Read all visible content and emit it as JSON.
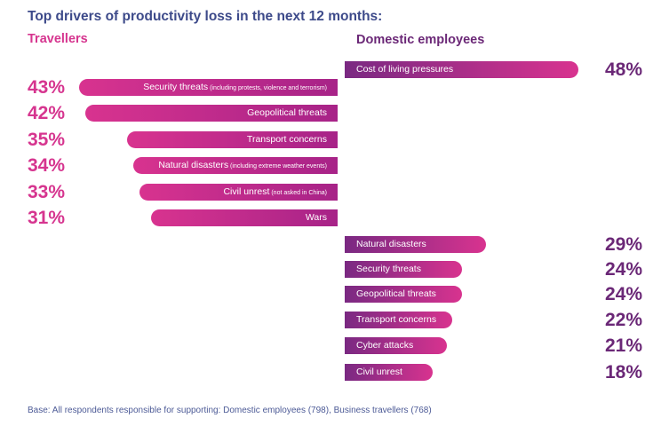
{
  "chart_data": {
    "type": "bar",
    "title": "Top drivers of productivity loss in the next 12 months:",
    "unit": "%",
    "xlim": [
      0,
      50
    ],
    "series": [
      {
        "name": "Travellers",
        "color": "#d6358f",
        "orientation": "left",
        "categories": [
          {
            "label": "Security threats",
            "note": "(including protests, violence and terrorism)"
          },
          {
            "label": "Geopolitical threats",
            "note": ""
          },
          {
            "label": "Transport concerns",
            "note": ""
          },
          {
            "label": "Natural disasters",
            "note": "(including extreme weather events)"
          },
          {
            "label": "Civil unrest",
            "note": "(not asked in China)"
          },
          {
            "label": "Wars",
            "note": ""
          }
        ],
        "values": [
          43,
          42,
          35,
          34,
          33,
          31
        ],
        "value_labels": [
          "43%",
          "42%",
          "35%",
          "34%",
          "33%",
          "31%"
        ]
      },
      {
        "name": "Domestic employees",
        "color": "#6b2877",
        "orientation": "right",
        "categories": [
          {
            "label": "Cost of living pressures",
            "note": ""
          },
          {
            "label": "Natural disasters",
            "note": ""
          },
          {
            "label": "Security threats",
            "note": ""
          },
          {
            "label": "Geopolitical threats",
            "note": ""
          },
          {
            "label": "Transport concerns",
            "note": ""
          },
          {
            "label": "Cyber attacks",
            "note": ""
          },
          {
            "label": "Civil unrest",
            "note": ""
          }
        ],
        "values": [
          48,
          29,
          24,
          24,
          22,
          21,
          18
        ],
        "value_labels": [
          "48%",
          "29%",
          "24%",
          "24%",
          "22%",
          "21%",
          "18%"
        ]
      }
    ]
  },
  "footer": {
    "base_note": "Base: All respondents responsible for supporting: Domestic employees (798), Business travellers (768)"
  }
}
